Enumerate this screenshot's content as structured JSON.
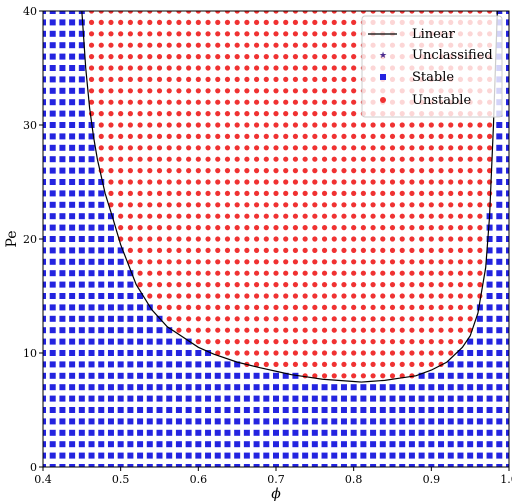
{
  "chart_data": {
    "type": "scatter",
    "title": "",
    "xlabel": "ϕ",
    "ylabel": "Pe",
    "xlim": [
      0.4,
      1.0
    ],
    "ylim": [
      0,
      40
    ],
    "grid": false,
    "x_ticks": [
      "0.4",
      "0.5",
      "0.6",
      "0.7",
      "0.8",
      "0.9",
      "1.0"
    ],
    "y_ticks": [
      "0",
      "10",
      "20",
      "30",
      "40"
    ],
    "x_tick_values": [
      0.4,
      0.5,
      0.6,
      0.7,
      0.8,
      0.9,
      1.0
    ],
    "y_tick_values": [
      0,
      10,
      20,
      30,
      40
    ],
    "legend_position": "top-right",
    "sample_grid": {
      "x_start": 0.4,
      "x_step": 0.0125,
      "x_count": 49,
      "y_start": 0,
      "y_step": 1,
      "y_count": 41
    },
    "series": [
      {
        "name": "Linear",
        "kind": "line",
        "color": "#000000"
      },
      {
        "name": "Unclassified",
        "kind": "star",
        "color": "#4b2c8f"
      },
      {
        "name": "Stable",
        "kind": "square",
        "color": "#2424e0"
      },
      {
        "name": "Unstable",
        "kind": "circle",
        "color": "#f03232"
      }
    ],
    "linear_boundary": {
      "x": [
        0.45,
        0.455,
        0.46,
        0.465,
        0.47,
        0.48,
        0.49,
        0.5,
        0.52,
        0.54,
        0.56,
        0.58,
        0.6,
        0.62,
        0.65,
        0.68,
        0.7,
        0.72,
        0.74,
        0.76,
        0.78,
        0.8,
        0.81,
        0.82,
        0.84,
        0.86,
        0.88,
        0.9,
        0.92,
        0.94,
        0.95,
        0.96,
        0.97,
        0.975,
        0.98,
        0.985
      ],
      "y": [
        40,
        35,
        31.5,
        29,
        27,
        24,
        21.8,
        19.5,
        16,
        13.8,
        12.3,
        11.4,
        10.5,
        9.9,
        9.2,
        8.7,
        8.4,
        8.1,
        7.9,
        7.7,
        7.6,
        7.5,
        7.45,
        7.5,
        7.6,
        7.8,
        8.0,
        8.5,
        9.2,
        10.5,
        11.5,
        13.5,
        17.5,
        22,
        30,
        40
      ]
    }
  }
}
